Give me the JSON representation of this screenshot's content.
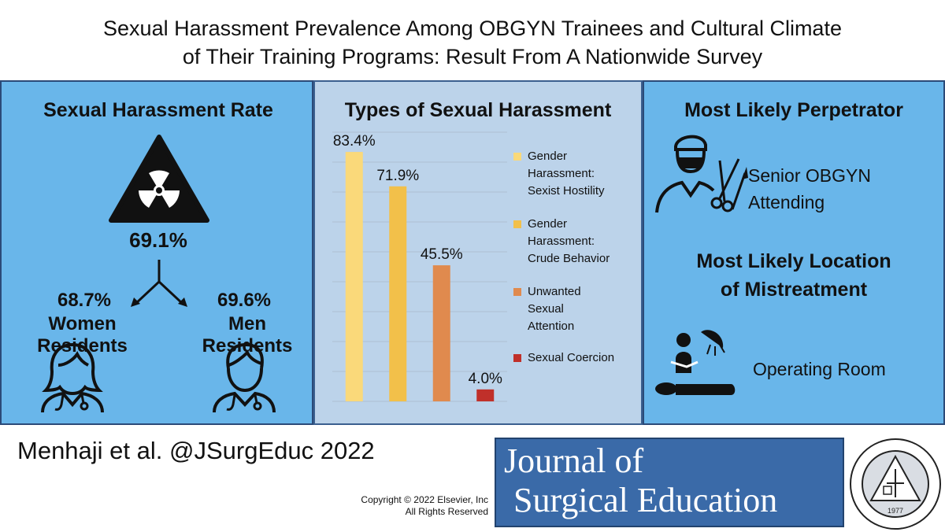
{
  "title": {
    "line1": "Sexual Harassment Prevalence Among OBGYN Trainees and Cultural Climate",
    "line2": "of Their Training Programs: Result From A Nationwide Survey"
  },
  "rate_panel": {
    "heading": "Sexual Harassment Rate",
    "overall": "69.1%",
    "women_pct": "68.7%",
    "women_label": "Women Residents",
    "men_pct": "69.6%",
    "men_label": "Men Residents"
  },
  "chart_data": {
    "type": "bar",
    "title": "Types of Sexual Harassment",
    "categories": [
      "Gender Harassment: Sexist Hostility",
      "Gender Harassment: Crude Behavior",
      "Unwanted Sexual Attention",
      "Sexual Coercion"
    ],
    "values": [
      83.4,
      71.9,
      45.5,
      4.0
    ],
    "data_labels": [
      "83.4%",
      "71.9%",
      "45.5%",
      "4.0%"
    ],
    "colors": [
      "#fad97a",
      "#f2c04a",
      "#e08a4e",
      "#c0302a"
    ],
    "legend": [
      [
        "Gender",
        "Harassment:",
        "Sexist Hostility"
      ],
      [
        "Gender",
        "Harassment:",
        "Crude Behavior"
      ],
      [
        "Unwanted",
        "Sexual",
        "Attention"
      ],
      [
        "Sexual Coercion"
      ]
    ],
    "legend_position": "right",
    "ylim": [
      0,
      90
    ],
    "grid": true,
    "xlabel": "",
    "ylabel": ""
  },
  "perpetrator_panel": {
    "heading": "Most Likely Perpetrator",
    "perpetrator_line1": "Senior OBGYN",
    "perpetrator_line2": "Attending",
    "location_heading_line1": "Most Likely Location",
    "location_heading_line2": "of Mistreatment",
    "location": "Operating Room"
  },
  "footer": {
    "citation": "Menhaji et al. @JSurgEduc 2022",
    "copyright_line1": "Copyright © 2022  Elsevier, Inc",
    "copyright_line2": "All Rights Reserved",
    "journal_line1": "Journal of",
    "journal_line2": "Surgical Education",
    "seal_year": "1977"
  }
}
